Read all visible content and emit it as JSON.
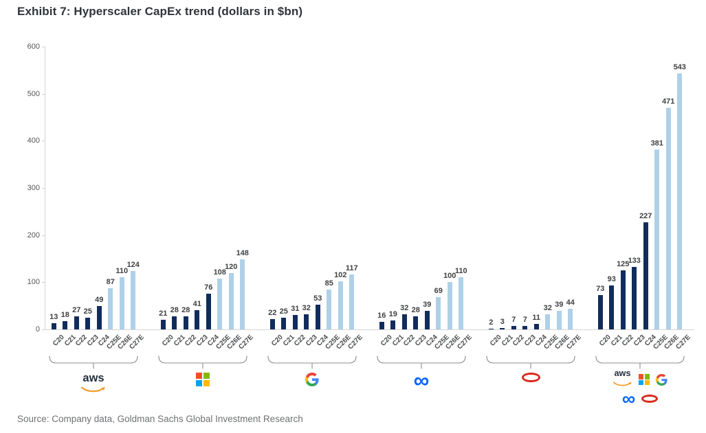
{
  "title": "Exhibit 7: Hyperscaler CapEx trend (dollars in $bn)",
  "source": "Source: Company data, Goldman Sachs Global Investment Research",
  "chart_data": {
    "type": "bar",
    "categories": [
      "C20",
      "C21",
      "C22",
      "C23",
      "C24",
      "C25E",
      "C26E",
      "C27E"
    ],
    "actual_count": 5,
    "groups": [
      {
        "name": "AWS",
        "logo": "aws",
        "values": [
          13,
          18,
          27,
          25,
          49,
          87,
          110,
          124
        ]
      },
      {
        "name": "Microsoft",
        "logo": "microsoft",
        "values": [
          21,
          28,
          28,
          41,
          76,
          108,
          120,
          148
        ]
      },
      {
        "name": "Google",
        "logo": "google",
        "values": [
          22,
          25,
          31,
          32,
          53,
          85,
          102,
          117
        ]
      },
      {
        "name": "Meta",
        "logo": "meta",
        "values": [
          16,
          19,
          32,
          28,
          39,
          69,
          100,
          110
        ]
      },
      {
        "name": "Oracle",
        "logo": "oracle",
        "values": [
          2,
          3,
          7,
          7,
          11,
          32,
          39,
          44
        ]
      },
      {
        "name": "All hyperscalers",
        "logo": "all",
        "values": [
          73,
          93,
          125,
          133,
          227,
          381,
          471,
          543
        ]
      }
    ],
    "title": "Exhibit 7: Hyperscaler CapEx trend (dollars in $bn)",
    "xlabel": "",
    "ylabel": "",
    "ylim": [
      0,
      600
    ],
    "yticks": [
      0,
      100,
      200,
      300,
      400,
      500,
      600
    ],
    "grid": false,
    "legend_position": "none",
    "bar_colors": {
      "actual": "#102c5c",
      "estimate": "#aed0e8"
    }
  },
  "logos": {
    "aws_text": "aws",
    "meta_glyph": "∞"
  },
  "brand_colors": {
    "aws_smile": "#f59a23",
    "aws_text": "#232f3e",
    "ms_squares": [
      "#F25022",
      "#7FBA00",
      "#00A4EF",
      "#FFB900"
    ],
    "google": {
      "blue": "#4285F4",
      "green": "#34A853",
      "yellow": "#FBBC05",
      "red": "#EA4335"
    },
    "meta_blue": "#0866FF",
    "oracle_red": "#DA291C"
  }
}
